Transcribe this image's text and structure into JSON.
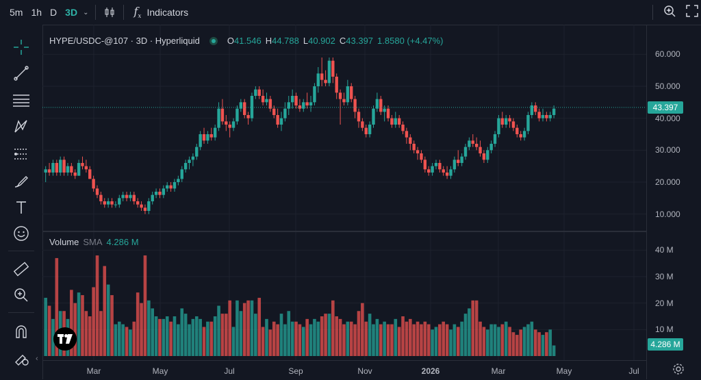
{
  "toolbar": {
    "timeframes": [
      "5m",
      "1h",
      "D",
      "3D"
    ],
    "active_timeframe": "3D",
    "indicators_label": "Indicators"
  },
  "legend": {
    "symbol": "HYPE/USDC-@107 · 3D · Hyperliquid",
    "o_label": "O",
    "o": "41.546",
    "h_label": "H",
    "h": "44.788",
    "l_label": "L",
    "l": "40.902",
    "c_label": "C",
    "c": "43.397",
    "change": "1.8580 (+4.47%)"
  },
  "volume_legend": {
    "label": "Volume",
    "sma_label": "SMA",
    "value": "4.286 M"
  },
  "price_axis": [
    "60.000",
    "50.000",
    "40.000",
    "30.000",
    "20.000",
    "10.000"
  ],
  "volume_axis": [
    "40 M",
    "30 M",
    "20 M",
    "10 M"
  ],
  "current_price_tag": "43.397",
  "current_volume_tag": "4.286 M",
  "time_axis": [
    "Mar",
    "May",
    "Jul",
    "Sep",
    "Nov",
    "2026",
    "Mar",
    "May",
    "Jul"
  ],
  "colors": {
    "up": "#26a69a",
    "down": "#ef5350",
    "background": "#131722",
    "grid": "#1e222d"
  },
  "icons": [
    "chart-type-icon",
    "fx-icon",
    "search-alert-icon",
    "fullscreen-icon",
    "crosshair-icon",
    "trendline-icon",
    "fib-icon",
    "pattern-icon",
    "forecast-icon",
    "brush-icon",
    "text-icon",
    "emoji-icon",
    "ruler-icon",
    "zoom-icon",
    "magnet-icon",
    "lock-icon",
    "settings-icon",
    "tradingview-logo"
  ],
  "chart_data": {
    "type": "candlestick",
    "title": "HYPE/USDC-@107 · 3D · Hyperliquid",
    "ylim": [
      5,
      65
    ],
    "volume_ylim": [
      0,
      45
    ],
    "candles": [
      [
        23,
        25,
        20,
        24,
        22
      ],
      [
        24,
        26,
        22,
        23,
        19
      ],
      [
        23,
        27,
        22,
        26,
        14
      ],
      [
        26,
        27,
        22,
        23,
        37
      ],
      [
        23,
        28,
        22,
        27,
        17
      ],
      [
        27,
        28,
        22,
        23,
        17
      ],
      [
        23,
        26,
        22,
        25,
        14
      ],
      [
        25,
        26,
        22,
        23,
        25
      ],
      [
        23,
        24,
        21,
        22,
        20
      ],
      [
        22,
        27,
        22,
        26,
        24
      ],
      [
        26,
        28,
        24,
        25,
        23
      ],
      [
        25,
        27,
        23,
        24,
        17
      ],
      [
        24,
        25,
        21,
        21,
        15
      ],
      [
        21,
        22,
        17,
        18,
        26
      ],
      [
        18,
        19,
        15,
        16,
        38
      ],
      [
        16,
        17,
        13,
        14,
        17
      ],
      [
        14,
        15,
        12,
        13,
        34
      ],
      [
        13,
        15,
        12,
        14,
        27
      ],
      [
        14,
        15,
        12,
        13,
        23
      ],
      [
        13,
        14,
        12,
        13,
        12
      ],
      [
        13,
        16,
        12,
        15,
        13
      ],
      [
        15,
        17,
        14,
        16,
        12
      ],
      [
        16,
        17,
        14,
        15,
        11
      ],
      [
        15,
        17,
        14,
        16,
        10
      ],
      [
        16,
        17,
        13,
        14,
        13
      ],
      [
        14,
        15,
        12,
        13,
        24
      ],
      [
        13,
        14,
        11,
        12,
        20
      ],
      [
        12,
        13,
        10,
        11,
        38
      ],
      [
        11,
        15,
        10,
        14,
        21
      ],
      [
        14,
        17,
        13,
        16,
        18
      ],
      [
        16,
        18,
        15,
        17,
        15
      ],
      [
        17,
        18,
        15,
        16,
        14
      ],
      [
        16,
        19,
        15,
        18,
        14
      ],
      [
        18,
        20,
        17,
        19,
        15
      ],
      [
        19,
        20,
        17,
        18,
        13
      ],
      [
        18,
        21,
        17,
        20,
        15
      ],
      [
        20,
        22,
        19,
        21,
        12
      ],
      [
        21,
        25,
        20,
        24,
        18
      ],
      [
        24,
        27,
        23,
        26,
        16
      ],
      [
        26,
        28,
        24,
        27,
        12
      ],
      [
        27,
        29,
        25,
        28,
        14
      ],
      [
        28,
        32,
        27,
        31,
        15
      ],
      [
        31,
        36,
        30,
        35,
        14
      ],
      [
        35,
        37,
        32,
        33,
        11
      ],
      [
        33,
        36,
        32,
        35,
        13
      ],
      [
        35,
        37,
        33,
        34,
        13
      ],
      [
        34,
        38,
        33,
        37,
        15
      ],
      [
        37,
        45,
        36,
        43,
        19
      ],
      [
        43,
        46,
        38,
        39,
        16
      ],
      [
        39,
        41,
        36,
        38,
        16
      ],
      [
        38,
        39,
        34,
        37,
        21
      ],
      [
        37,
        40,
        36,
        39,
        11
      ],
      [
        39,
        44,
        38,
        43,
        21
      ],
      [
        43,
        46,
        42,
        45,
        17
      ],
      [
        45,
        46,
        40,
        41,
        20
      ],
      [
        41,
        42,
        38,
        40,
        21
      ],
      [
        40,
        48,
        39,
        47,
        21
      ],
      [
        47,
        50,
        46,
        49,
        16
      ],
      [
        49,
        50,
        46,
        47,
        22
      ],
      [
        47,
        49,
        44,
        45,
        11
      ],
      [
        45,
        48,
        44,
        46,
        14
      ],
      [
        46,
        47,
        42,
        43,
        10
      ],
      [
        43,
        44,
        40,
        41,
        13
      ],
      [
        41,
        43,
        37,
        38,
        12
      ],
      [
        38,
        42,
        36,
        40,
        16
      ],
      [
        40,
        45,
        39,
        43,
        12
      ],
      [
        43,
        47,
        41,
        45,
        17
      ],
      [
        45,
        49,
        43,
        47,
        13
      ],
      [
        47,
        48,
        43,
        44,
        13
      ],
      [
        44,
        46,
        42,
        43,
        12
      ],
      [
        43,
        46,
        42,
        45,
        11
      ],
      [
        45,
        48,
        43,
        44,
        14
      ],
      [
        44,
        47,
        42,
        45,
        12
      ],
      [
        45,
        51,
        44,
        50,
        14
      ],
      [
        50,
        56,
        48,
        54,
        13
      ],
      [
        54,
        59,
        50,
        52,
        15
      ],
      [
        52,
        55,
        50,
        51,
        16
      ],
      [
        51,
        59,
        50,
        58,
        16
      ],
      [
        58,
        59,
        51,
        53,
        21
      ],
      [
        53,
        54,
        46,
        48,
        15
      ],
      [
        48,
        49,
        38,
        46,
        14
      ],
      [
        46,
        48,
        44,
        45,
        12
      ],
      [
        45,
        52,
        44,
        50,
        13
      ],
      [
        50,
        51,
        45,
        46,
        13
      ],
      [
        46,
        47,
        40,
        42,
        12
      ],
      [
        42,
        43,
        37,
        39,
        17
      ],
      [
        39,
        40,
        36,
        37,
        20
      ],
      [
        37,
        38,
        34,
        35,
        13
      ],
      [
        35,
        39,
        34,
        38,
        16
      ],
      [
        38,
        44,
        37,
        43,
        12
      ],
      [
        43,
        48,
        42,
        46,
        14
      ],
      [
        46,
        47,
        41,
        42,
        12
      ],
      [
        42,
        44,
        39,
        43,
        13
      ],
      [
        43,
        44,
        39,
        40,
        12
      ],
      [
        40,
        41,
        37,
        38,
        12
      ],
      [
        38,
        42,
        37,
        40,
        14
      ],
      [
        40,
        41,
        37,
        38,
        11
      ],
      [
        38,
        39,
        35,
        36,
        15
      ],
      [
        36,
        37,
        32,
        34,
        13
      ],
      [
        34,
        35,
        30,
        32,
        14
      ],
      [
        32,
        33,
        29,
        30,
        12
      ],
      [
        30,
        31,
        27,
        29,
        13
      ],
      [
        29,
        30,
        26,
        27,
        12
      ],
      [
        27,
        28,
        23,
        24,
        13
      ],
      [
        24,
        25,
        22,
        23,
        12
      ],
      [
        23,
        26,
        22,
        25,
        10
      ],
      [
        25,
        27,
        24,
        26,
        11
      ],
      [
        26,
        27,
        23,
        24,
        12
      ],
      [
        24,
        25,
        22,
        23,
        13
      ],
      [
        23,
        25,
        21,
        22,
        12
      ],
      [
        22,
        25,
        21,
        24,
        10
      ],
      [
        24,
        28,
        23,
        27,
        12
      ],
      [
        27,
        30,
        25,
        26,
        11
      ],
      [
        26,
        29,
        25,
        28,
        13
      ],
      [
        28,
        32,
        27,
        31,
        16
      ],
      [
        31,
        34,
        30,
        33,
        18
      ],
      [
        33,
        35,
        31,
        32,
        21
      ],
      [
        32,
        34,
        30,
        31,
        21
      ],
      [
        31,
        33,
        28,
        29,
        13
      ],
      [
        29,
        30,
        26,
        27,
        11
      ],
      [
        27,
        31,
        26,
        30,
        10
      ],
      [
        30,
        33,
        29,
        32,
        12
      ],
      [
        32,
        36,
        31,
        35,
        12
      ],
      [
        35,
        41,
        34,
        40,
        11
      ],
      [
        40,
        42,
        37,
        38,
        12
      ],
      [
        38,
        41,
        37,
        40,
        13
      ],
      [
        40,
        41,
        37,
        39,
        11
      ],
      [
        39,
        40,
        36,
        37,
        9
      ],
      [
        37,
        38,
        34,
        35,
        8
      ],
      [
        35,
        36,
        33,
        34,
        10
      ],
      [
        34,
        37,
        33,
        36,
        11
      ],
      [
        36,
        42,
        35,
        41,
        12
      ],
      [
        41,
        45,
        40,
        44,
        13
      ],
      [
        44,
        45,
        41,
        42,
        10
      ],
      [
        42,
        43,
        39,
        40,
        9
      ],
      [
        40,
        43,
        39,
        41,
        8
      ],
      [
        41,
        42,
        39,
        40,
        9
      ],
      [
        40,
        42,
        39,
        41,
        10
      ],
      [
        41,
        44,
        40,
        43,
        4
      ]
    ]
  }
}
